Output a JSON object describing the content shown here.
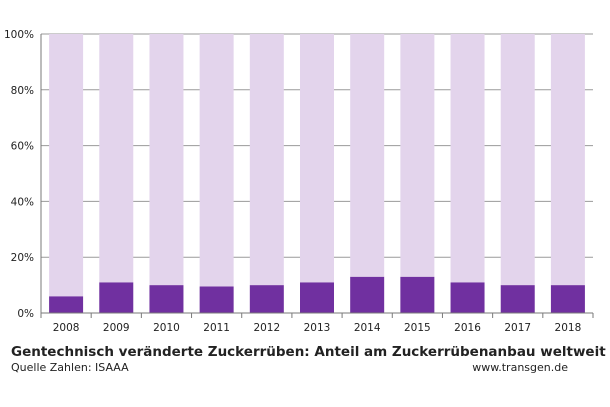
{
  "chart_data": {
    "type": "bar",
    "stacked": true,
    "categories": [
      "2008",
      "2009",
      "2010",
      "2011",
      "2012",
      "2013",
      "2014",
      "2015",
      "2016",
      "2017",
      "2018"
    ],
    "series": [
      {
        "values": [
          6,
          11,
          10,
          9.5,
          10,
          11,
          13,
          13,
          11,
          10,
          10
        ],
        "color": "#7030a0"
      },
      {
        "values": [
          94,
          89,
          90,
          90.5,
          90,
          89,
          87,
          87,
          89,
          90,
          90
        ],
        "color": "#e3d4ec"
      }
    ],
    "title": "Gentechnisch veränderte Zuckerrüben: Anteil am Zuckerrübenanbau weltweit",
    "xlabel": "",
    "ylabel": "",
    "ylim": [
      0,
      100
    ],
    "yticks": [
      "0%",
      "20%",
      "40%",
      "60%",
      "80%",
      "100%"
    ],
    "grid": true
  },
  "footer": {
    "title": "Gentechnisch veränderte Zuckerrüben: Anteil am Zuckerrübenanbau weltweit",
    "source": "Quelle Zahlen: ISAAA",
    "site": "www.transgen.de"
  }
}
